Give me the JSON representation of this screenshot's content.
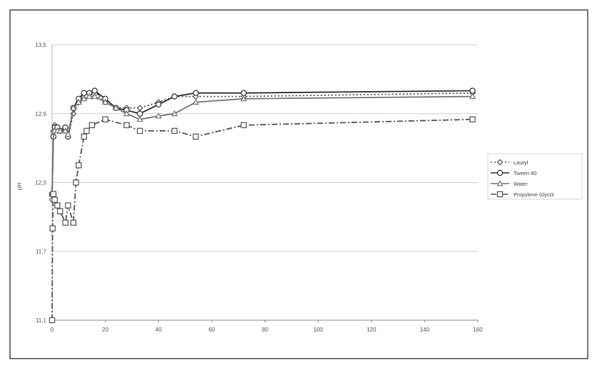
{
  "chart_data": {
    "type": "line",
    "title": "",
    "xlabel": "",
    "ylabel": "pH",
    "xlim": [
      0,
      160
    ],
    "ylim": [
      11.1,
      13.5
    ],
    "x_ticks": [
      "0",
      "20",
      "40",
      "60",
      "80",
      "100",
      "120",
      "140",
      "160"
    ],
    "y_ticks": [
      "11,1",
      "11,7",
      "12,3",
      "12,9",
      "13,5"
    ],
    "grid": "horizontal",
    "legend_position": "right",
    "series": [
      {
        "name": "Lauryl",
        "color": "#555555",
        "marker": "diamond",
        "dash": "dot",
        "x": [
          0,
          0.5,
          1,
          2,
          3,
          5,
          6,
          8,
          10,
          12,
          13,
          15,
          17,
          20,
          24,
          28,
          33,
          40,
          46,
          54,
          72,
          158
        ],
        "y": [
          12.15,
          12.75,
          12.8,
          12.75,
          12.75,
          12.75,
          12.7,
          12.9,
          13.0,
          13.05,
          13.05,
          13.05,
          13.05,
          13.0,
          12.95,
          12.95,
          12.95,
          13.0,
          13.05,
          13.05,
          13.05,
          13.08
        ]
      },
      {
        "name": "Tween 80",
        "color": "#333333",
        "marker": "circle",
        "dash": "solid",
        "x": [
          0,
          0.5,
          1,
          2,
          3,
          5,
          6,
          8,
          10,
          12,
          14,
          16,
          20,
          24,
          28,
          33,
          40,
          46,
          54,
          72,
          158
        ],
        "y": [
          12.2,
          12.7,
          12.78,
          12.78,
          12.75,
          12.78,
          12.7,
          12.95,
          13.03,
          13.08,
          13.08,
          13.1,
          13.03,
          12.95,
          12.93,
          12.9,
          12.98,
          13.05,
          13.08,
          13.08,
          13.1
        ]
      },
      {
        "name": "Water",
        "color": "#777777",
        "marker": "triangle",
        "dash": "solid",
        "x": [
          0,
          0.5,
          1,
          2,
          3,
          5,
          6,
          8,
          10,
          12,
          14,
          16,
          20,
          24,
          28,
          33,
          40,
          46,
          54,
          72,
          158
        ],
        "y": [
          12.2,
          12.75,
          12.75,
          12.75,
          12.75,
          12.75,
          12.72,
          12.95,
          13.0,
          13.03,
          13.05,
          13.05,
          13.0,
          12.95,
          12.9,
          12.85,
          12.88,
          12.9,
          13.0,
          13.03,
          13.05
        ]
      },
      {
        "name": "Propylene Glycol",
        "color": "#555555",
        "marker": "square",
        "dash": "dashdot",
        "x": [
          0,
          0.2,
          0.5,
          1,
          2,
          3,
          5,
          6,
          8,
          9,
          10,
          12,
          13,
          15,
          20,
          28,
          33,
          46,
          54,
          72,
          158
        ],
        "y": [
          11.1,
          11.9,
          12.2,
          12.15,
          12.1,
          12.05,
          11.95,
          12.1,
          11.95,
          12.3,
          12.45,
          12.7,
          12.75,
          12.8,
          12.85,
          12.8,
          12.75,
          12.75,
          12.7,
          12.8,
          12.85
        ]
      }
    ]
  }
}
